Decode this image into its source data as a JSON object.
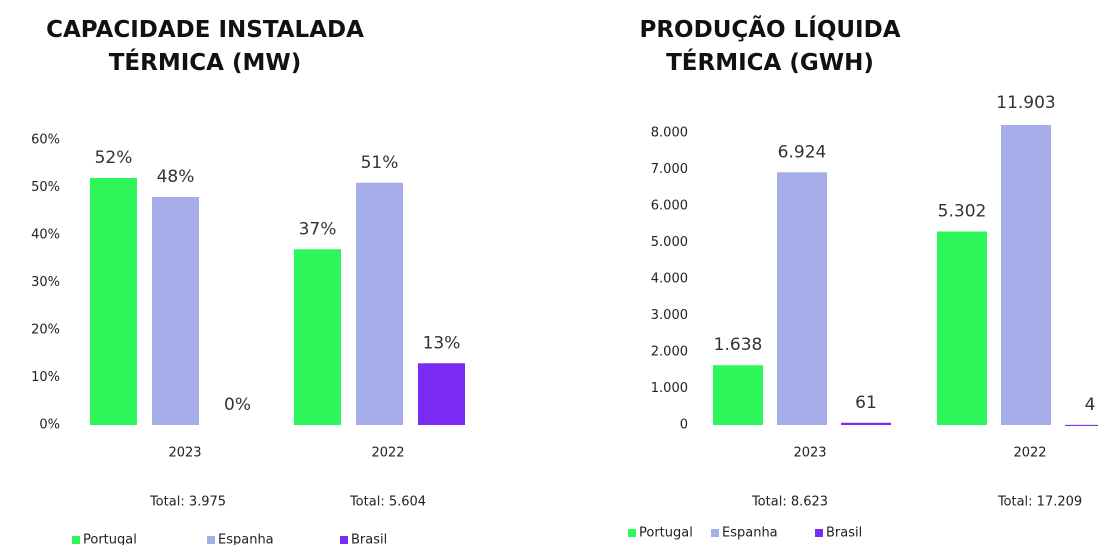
{
  "chart_data": [
    {
      "type": "bar",
      "title": "CAPACIDADE INSTALADA\nTÉRMICA (MW)",
      "categories": [
        "2023",
        "2022"
      ],
      "series": [
        {
          "name": "Portugal",
          "color": "#2ef55a",
          "values": [
            52,
            37
          ],
          "value_labels": [
            "52%",
            "37%"
          ]
        },
        {
          "name": "Espanha",
          "color": "#a5aee9",
          "values": [
            48,
            51
          ],
          "value_labels": [
            "48%",
            "51%"
          ]
        },
        {
          "name": "Brasil",
          "color": "#7a2cf5",
          "values": [
            0,
            13
          ],
          "value_labels": [
            "0%",
            "13%"
          ]
        }
      ],
      "ylim": [
        0,
        60
      ],
      "yticks": [
        {
          "value": 0,
          "label": "0%"
        },
        {
          "value": 10,
          "label": "10%"
        },
        {
          "value": 20,
          "label": "20%"
        },
        {
          "value": 30,
          "label": "30%"
        },
        {
          "value": 40,
          "label": "40%"
        },
        {
          "value": 50,
          "label": "50%"
        },
        {
          "value": 60,
          "label": "60%"
        }
      ],
      "totals": [
        "Total: 3.975",
        "Total: 5.604"
      ]
    },
    {
      "type": "bar",
      "title": "PRODUÇÃO LÍQUIDA\nTÉRMICA (GWH)",
      "categories": [
        "2023",
        "2022"
      ],
      "series": [
        {
          "name": "Portugal",
          "color": "#2ef55a",
          "values": [
            1638,
            5302
          ],
          "value_labels": [
            "1.638",
            "5.302"
          ]
        },
        {
          "name": "Espanha",
          "color": "#a5aee9",
          "values": [
            6924,
            11903
          ],
          "value_labels": [
            "6.924",
            "11.903"
          ]
        },
        {
          "name": "Brasil",
          "color": "#7a2cf5",
          "values": [
            61,
            4
          ],
          "value_labels": [
            "61",
            "4"
          ]
        }
      ],
      "ylim": [
        0,
        8000
      ],
      "yticks": [
        0,
        {
          "value": 1000,
          "label": "1.000"
        },
        {
          "value": 2000,
          "label": "2.000"
        },
        {
          "value": 3000,
          "label": "3.000"
        },
        {
          "value": 4000,
          "label": "4.000"
        },
        {
          "value": 5000,
          "label": "5.000"
        },
        {
          "value": 6000,
          "label": "6.000"
        },
        {
          "value": 7000,
          "label": "7.000"
        },
        {
          "value": 8000,
          "label": "8.000"
        }
      ],
      "totals": [
        "Total: 8.623",
        "Total: 17.209"
      ]
    }
  ]
}
